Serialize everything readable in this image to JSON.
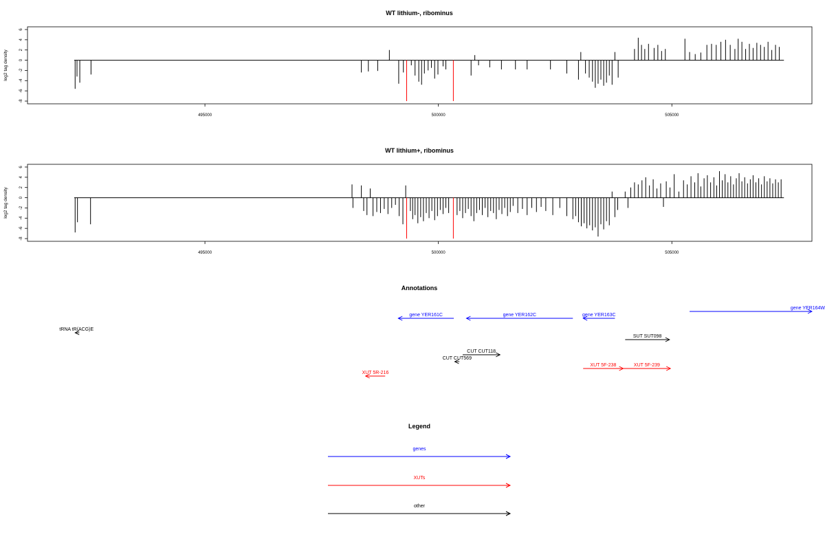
{
  "chart_data": [
    {
      "type": "bar",
      "title": "WT lithium-, ribominus",
      "ylabel": "log2 tag density",
      "xlim": [
        491200,
        508000
      ],
      "ylim": [
        -8.4,
        6.4
      ],
      "yticks": [
        6,
        4,
        2,
        0,
        -2,
        -4,
        -6,
        -8
      ],
      "xticks": [
        495000,
        500000,
        505000
      ],
      "baseline": [
        492200,
        507400
      ],
      "highlight_color": "#ff0000",
      "bar_color": "#000000",
      "highlights": [
        {
          "x": 499320,
          "y": -8
        },
        {
          "x": 500320,
          "y": -8
        }
      ],
      "bars": [
        {
          "x": 492220,
          "y": -5.6
        },
        {
          "x": 492260,
          "y": -3.2
        },
        {
          "x": 492320,
          "y": -4.4
        },
        {
          "x": 492560,
          "y": -2.8
        },
        {
          "x": 498350,
          "y": -2.4
        },
        {
          "x": 498500,
          "y": -2.2
        },
        {
          "x": 498700,
          "y": -2.1
        },
        {
          "x": 498950,
          "y": 2.0
        },
        {
          "x": 499150,
          "y": -4.6
        },
        {
          "x": 499250,
          "y": -2.4
        },
        {
          "x": 499420,
          "y": -1.0
        },
        {
          "x": 499500,
          "y": -3.0
        },
        {
          "x": 499580,
          "y": -4.2
        },
        {
          "x": 499640,
          "y": -4.8
        },
        {
          "x": 499700,
          "y": -2.6
        },
        {
          "x": 499780,
          "y": -2.0
        },
        {
          "x": 499850,
          "y": -1.5
        },
        {
          "x": 499920,
          "y": -3.6
        },
        {
          "x": 499990,
          "y": -2.8
        },
        {
          "x": 500100,
          "y": -1.2
        },
        {
          "x": 500160,
          "y": -1.8
        },
        {
          "x": 500700,
          "y": -3.0
        },
        {
          "x": 500780,
          "y": 1.0
        },
        {
          "x": 500860,
          "y": -1.0
        },
        {
          "x": 501100,
          "y": -1.4
        },
        {
          "x": 501350,
          "y": -1.8
        },
        {
          "x": 501650,
          "y": -1.8
        },
        {
          "x": 501900,
          "y": -1.8
        },
        {
          "x": 502400,
          "y": -1.8
        },
        {
          "x": 502750,
          "y": -2.6
        },
        {
          "x": 503000,
          "y": -3.8
        },
        {
          "x": 503050,
          "y": 1.6
        },
        {
          "x": 503150,
          "y": -2.6
        },
        {
          "x": 503230,
          "y": -3.4
        },
        {
          "x": 503300,
          "y": -4.2
        },
        {
          "x": 503360,
          "y": -5.4
        },
        {
          "x": 503420,
          "y": -4.6
        },
        {
          "x": 503480,
          "y": -3.8
        },
        {
          "x": 503540,
          "y": -5.0
        },
        {
          "x": 503600,
          "y": -4.4
        },
        {
          "x": 503660,
          "y": -3.0
        },
        {
          "x": 503720,
          "y": -4.8
        },
        {
          "x": 503780,
          "y": 1.6
        },
        {
          "x": 503850,
          "y": -3.4
        },
        {
          "x": 504200,
          "y": 2.2
        },
        {
          "x": 504280,
          "y": 4.4
        },
        {
          "x": 504350,
          "y": 3.0
        },
        {
          "x": 504420,
          "y": 2.2
        },
        {
          "x": 504500,
          "y": 3.2
        },
        {
          "x": 504620,
          "y": 2.4
        },
        {
          "x": 504700,
          "y": 3.0
        },
        {
          "x": 504780,
          "y": 1.8
        },
        {
          "x": 504860,
          "y": 2.2
        },
        {
          "x": 505280,
          "y": 4.2
        },
        {
          "x": 505380,
          "y": 1.6
        },
        {
          "x": 505500,
          "y": 1.2
        },
        {
          "x": 505620,
          "y": 1.5
        },
        {
          "x": 505750,
          "y": 3.0
        },
        {
          "x": 505850,
          "y": 3.2
        },
        {
          "x": 505950,
          "y": 3.0
        },
        {
          "x": 506050,
          "y": 3.6
        },
        {
          "x": 506150,
          "y": 4.0
        },
        {
          "x": 506250,
          "y": 3.0
        },
        {
          "x": 506350,
          "y": 2.2
        },
        {
          "x": 506420,
          "y": 4.2
        },
        {
          "x": 506500,
          "y": 3.6
        },
        {
          "x": 506580,
          "y": 2.2
        },
        {
          "x": 506660,
          "y": 3.2
        },
        {
          "x": 506740,
          "y": 2.4
        },
        {
          "x": 506820,
          "y": 3.4
        },
        {
          "x": 506900,
          "y": 3.0
        },
        {
          "x": 506980,
          "y": 2.6
        },
        {
          "x": 507060,
          "y": 3.6
        },
        {
          "x": 507140,
          "y": 2.0
        },
        {
          "x": 507220,
          "y": 3.0
        },
        {
          "x": 507300,
          "y": 2.6
        }
      ]
    },
    {
      "type": "bar",
      "title": "WT lithium+, ribominus",
      "ylabel": "log2 tag density",
      "xlim": [
        491200,
        508000
      ],
      "ylim": [
        -8.4,
        6.4
      ],
      "yticks": [
        6,
        4,
        2,
        0,
        -2,
        -4,
        -6,
        -8
      ],
      "xticks": [
        495000,
        500000,
        505000
      ],
      "baseline": [
        492200,
        507400
      ],
      "highlight_color": "#ff0000",
      "bar_color": "#000000",
      "highlights": [
        {
          "x": 499320,
          "y": -8
        },
        {
          "x": 500320,
          "y": -8
        }
      ],
      "bars": [
        {
          "x": 492220,
          "y": -6.8
        },
        {
          "x": 492270,
          "y": -4.8
        },
        {
          "x": 492550,
          "y": -5.2
        },
        {
          "x": 498150,
          "y": 2.6
        },
        {
          "x": 498170,
          "y": -2.0
        },
        {
          "x": 498350,
          "y": 2.4
        },
        {
          "x": 498400,
          "y": -2.6
        },
        {
          "x": 498470,
          "y": -3.4
        },
        {
          "x": 498540,
          "y": 1.8
        },
        {
          "x": 498600,
          "y": -3.6
        },
        {
          "x": 498680,
          "y": -2.8
        },
        {
          "x": 498760,
          "y": -3.0
        },
        {
          "x": 498840,
          "y": -2.2
        },
        {
          "x": 498920,
          "y": -3.2
        },
        {
          "x": 499000,
          "y": -2.0
        },
        {
          "x": 499080,
          "y": -1.4
        },
        {
          "x": 499160,
          "y": -3.6
        },
        {
          "x": 499240,
          "y": -5.2
        },
        {
          "x": 499300,
          "y": 2.4
        },
        {
          "x": 499400,
          "y": -2.6
        },
        {
          "x": 499450,
          "y": -4.2
        },
        {
          "x": 499500,
          "y": -3.4
        },
        {
          "x": 499560,
          "y": -5.0
        },
        {
          "x": 499620,
          "y": -3.8
        },
        {
          "x": 499680,
          "y": -4.6
        },
        {
          "x": 499740,
          "y": -3.0
        },
        {
          "x": 499800,
          "y": -4.0
        },
        {
          "x": 499860,
          "y": -2.6
        },
        {
          "x": 499920,
          "y": -4.4
        },
        {
          "x": 499980,
          "y": -3.6
        },
        {
          "x": 500040,
          "y": -2.4
        },
        {
          "x": 500100,
          "y": -3.2
        },
        {
          "x": 500160,
          "y": -2.0
        },
        {
          "x": 500220,
          "y": -3.0
        },
        {
          "x": 500400,
          "y": -3.4
        },
        {
          "x": 500460,
          "y": -2.6
        },
        {
          "x": 500520,
          "y": -4.0
        },
        {
          "x": 500580,
          "y": -3.0
        },
        {
          "x": 500640,
          "y": -2.2
        },
        {
          "x": 500700,
          "y": -3.6
        },
        {
          "x": 500760,
          "y": -4.6
        },
        {
          "x": 500820,
          "y": -3.0
        },
        {
          "x": 500880,
          "y": -2.4
        },
        {
          "x": 500940,
          "y": -3.4
        },
        {
          "x": 501000,
          "y": -2.0
        },
        {
          "x": 501060,
          "y": -3.8
        },
        {
          "x": 501120,
          "y": -2.6
        },
        {
          "x": 501180,
          "y": -3.0
        },
        {
          "x": 501240,
          "y": -4.2
        },
        {
          "x": 501300,
          "y": -2.4
        },
        {
          "x": 501360,
          "y": -3.2
        },
        {
          "x": 501420,
          "y": -2.0
        },
        {
          "x": 501480,
          "y": -3.6
        },
        {
          "x": 501540,
          "y": -2.8
        },
        {
          "x": 501600,
          "y": -1.6
        },
        {
          "x": 501700,
          "y": -3.0
        },
        {
          "x": 501800,
          "y": -2.2
        },
        {
          "x": 501900,
          "y": -3.4
        },
        {
          "x": 502000,
          "y": -2.0
        },
        {
          "x": 502100,
          "y": -2.8
        },
        {
          "x": 502200,
          "y": -1.8
        },
        {
          "x": 502300,
          "y": -2.6
        },
        {
          "x": 502450,
          "y": -3.4
        },
        {
          "x": 502600,
          "y": -2.0
        },
        {
          "x": 502750,
          "y": -3.6
        },
        {
          "x": 502880,
          "y": -4.2
        },
        {
          "x": 502940,
          "y": -3.6
        },
        {
          "x": 503000,
          "y": -4.8
        },
        {
          "x": 503060,
          "y": -5.6
        },
        {
          "x": 503120,
          "y": -5.0
        },
        {
          "x": 503180,
          "y": -6.0
        },
        {
          "x": 503240,
          "y": -5.4
        },
        {
          "x": 503300,
          "y": -6.4
        },
        {
          "x": 503360,
          "y": -5.8
        },
        {
          "x": 503420,
          "y": -7.6
        },
        {
          "x": 503480,
          "y": -5.2
        },
        {
          "x": 503540,
          "y": -6.2
        },
        {
          "x": 503600,
          "y": -4.6
        },
        {
          "x": 503660,
          "y": -5.4
        },
        {
          "x": 503720,
          "y": 1.2
        },
        {
          "x": 503780,
          "y": -3.8
        },
        {
          "x": 503840,
          "y": -2.4
        },
        {
          "x": 504000,
          "y": 1.2
        },
        {
          "x": 504060,
          "y": -2.0
        },
        {
          "x": 504120,
          "y": 2.0
        },
        {
          "x": 504200,
          "y": 3.0
        },
        {
          "x": 504280,
          "y": 2.6
        },
        {
          "x": 504360,
          "y": 3.4
        },
        {
          "x": 504440,
          "y": 4.0
        },
        {
          "x": 504520,
          "y": 2.4
        },
        {
          "x": 504600,
          "y": 3.6
        },
        {
          "x": 504680,
          "y": 1.8
        },
        {
          "x": 504760,
          "y": 2.8
        },
        {
          "x": 504820,
          "y": -1.8
        },
        {
          "x": 504880,
          "y": 3.2
        },
        {
          "x": 504960,
          "y": 2.0
        },
        {
          "x": 505050,
          "y": 4.6
        },
        {
          "x": 505150,
          "y": 1.2
        },
        {
          "x": 505250,
          "y": 3.4
        },
        {
          "x": 505330,
          "y": 2.6
        },
        {
          "x": 505410,
          "y": 4.2
        },
        {
          "x": 505490,
          "y": 3.0
        },
        {
          "x": 505560,
          "y": 4.8
        },
        {
          "x": 505620,
          "y": 2.2
        },
        {
          "x": 505690,
          "y": 3.8
        },
        {
          "x": 505760,
          "y": 4.4
        },
        {
          "x": 505830,
          "y": 3.0
        },
        {
          "x": 505900,
          "y": 4.0
        },
        {
          "x": 505960,
          "y": 2.4
        },
        {
          "x": 506020,
          "y": 5.2
        },
        {
          "x": 506080,
          "y": 3.4
        },
        {
          "x": 506140,
          "y": 4.6
        },
        {
          "x": 506200,
          "y": 3.0
        },
        {
          "x": 506260,
          "y": 4.2
        },
        {
          "x": 506320,
          "y": 2.6
        },
        {
          "x": 506380,
          "y": 3.8
        },
        {
          "x": 506440,
          "y": 4.8
        },
        {
          "x": 506500,
          "y": 3.2
        },
        {
          "x": 506560,
          "y": 4.0
        },
        {
          "x": 506620,
          "y": 2.8
        },
        {
          "x": 506680,
          "y": 3.6
        },
        {
          "x": 506740,
          "y": 4.4
        },
        {
          "x": 506800,
          "y": 3.0
        },
        {
          "x": 506860,
          "y": 3.8
        },
        {
          "x": 506920,
          "y": 2.6
        },
        {
          "x": 506980,
          "y": 4.2
        },
        {
          "x": 507040,
          "y": 3.2
        },
        {
          "x": 507100,
          "y": 3.8
        },
        {
          "x": 507160,
          "y": 2.8
        },
        {
          "x": 507220,
          "y": 3.6
        },
        {
          "x": 507280,
          "y": 3.0
        },
        {
          "x": 507340,
          "y": 3.6
        }
      ]
    }
  ],
  "annotations": {
    "title": "Annotations",
    "features": [
      {
        "label": "gene YER161C",
        "color": "#0000ff",
        "start": 499140,
        "end": 500330,
        "strand": "-",
        "row": 0
      },
      {
        "label": "gene YER162C",
        "color": "#0000ff",
        "start": 500600,
        "end": 502880,
        "strand": "-",
        "row": 0
      },
      {
        "label": "gene YER163C",
        "color": "#0000ff",
        "start": 503100,
        "end": 503780,
        "strand": "-",
        "row": 0
      },
      {
        "label": "gene YER164W",
        "color": "#0000ff",
        "start": 505380,
        "end": 508000,
        "strand": "+",
        "row": -1
      },
      {
        "label": "tRNA tR(ACG)E",
        "color": "#000000",
        "start": 492220,
        "end": 492310,
        "strand": "-",
        "row": 1
      },
      {
        "label": "SUT SUT098",
        "color": "#000000",
        "start": 504000,
        "end": 504950,
        "strand": "+",
        "row": 2
      },
      {
        "label": "CUT CUT118",
        "color": "#000000",
        "start": 500520,
        "end": 501320,
        "strand": "+",
        "row": 3
      },
      {
        "label": "CUT CUT569",
        "color": "#000000",
        "start": 500350,
        "end": 500450,
        "strand": "-",
        "row": 4
      },
      {
        "label": "XUT 5F-238",
        "color": "#ff0000",
        "start": 503100,
        "end": 503960,
        "strand": "+",
        "row": 5
      },
      {
        "label": "XUT 5F-239",
        "color": "#ff0000",
        "start": 503960,
        "end": 504970,
        "strand": "+",
        "row": 5
      },
      {
        "label": "XUT 5R-216",
        "color": "#ff0000",
        "start": 498440,
        "end": 498860,
        "strand": "-",
        "row": 6
      }
    ]
  },
  "legend": {
    "title": "Legend",
    "items": [
      {
        "label": "genes",
        "color": "#0000ff"
      },
      {
        "label": "XUTs",
        "color": "#ff0000"
      },
      {
        "label": "other",
        "color": "#000000"
      }
    ]
  }
}
